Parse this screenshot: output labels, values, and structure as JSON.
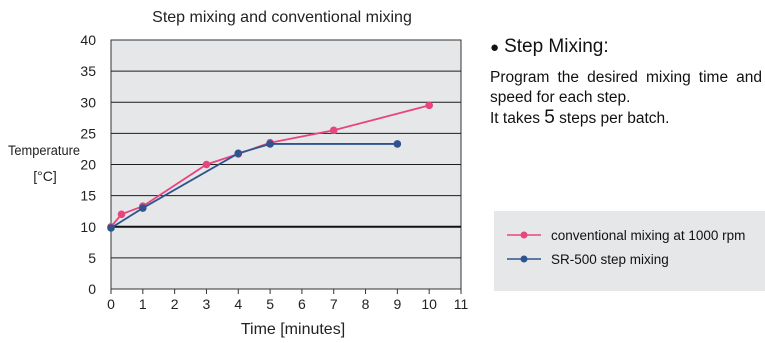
{
  "chart_data": {
    "type": "line",
    "title": "Step mixing and conventional mixing",
    "xlabel": "Time [minutes]",
    "ylabel": "Temperature",
    "ylabel_unit": "[°C]",
    "xlim": [
      0,
      11
    ],
    "ylim": [
      0,
      40
    ],
    "x_ticks": [
      "0",
      "1",
      "2",
      "3",
      "4",
      "5",
      "6",
      "7",
      "8",
      "9",
      "10",
      "11"
    ],
    "y_ticks": [
      "0",
      "5",
      "10",
      "15",
      "20",
      "25",
      "30",
      "35",
      "40"
    ],
    "grid": true,
    "reference_line": 10,
    "series": [
      {
        "name": "conventional mixing at 1000 rpm",
        "color": "#e8457f",
        "x": [
          0,
          0.33,
          1,
          3,
          4,
          5,
          7,
          10
        ],
        "y": [
          10,
          12,
          13.3,
          20,
          21.7,
          23.5,
          25.5,
          29.5
        ]
      },
      {
        "name": "SR-500 step mixing",
        "color": "#2e5590",
        "x": [
          0,
          1,
          4,
          5,
          9
        ],
        "y": [
          9.8,
          13,
          21.8,
          23.3,
          23.3
        ]
      }
    ]
  },
  "info": {
    "heading": "Step Mixing:",
    "line1": "Program the desired mixing time and speed for each step.",
    "line2_pre": "It takes",
    "line2_num": "5",
    "line2_post": "steps per batch."
  },
  "colors": {
    "plot_bg": "#e6e7e8",
    "grid": "#1e1e1e",
    "legend_bg": "#e6e7e8"
  }
}
